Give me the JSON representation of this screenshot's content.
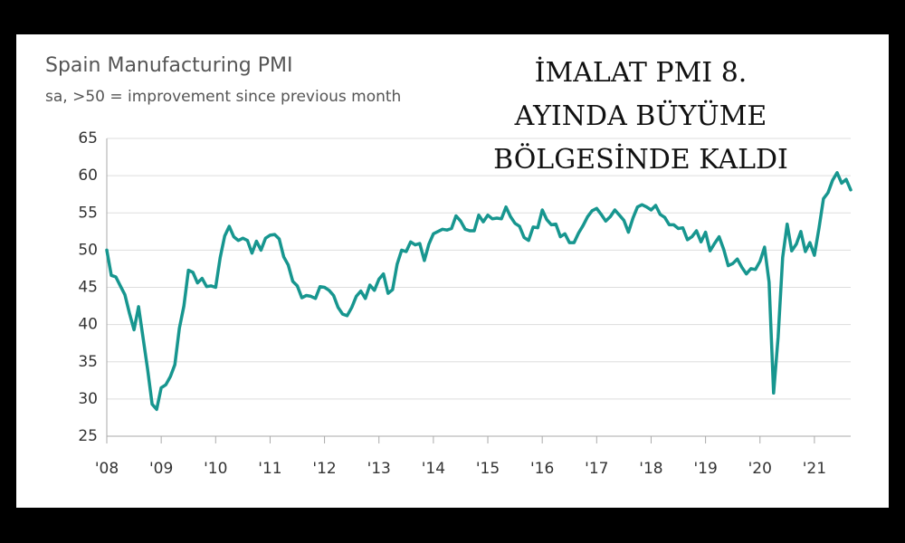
{
  "chart_data": {
    "type": "line",
    "title": "Spain Manufacturing PMI",
    "subtitle": "sa, >50 = improvement since previous month",
    "annotation": [
      "İMALAT PMI 8.",
      "AYINDA BÜYÜME",
      "BÖLGESİNDE KALDI"
    ],
    "categories": [
      "'08",
      null,
      null,
      null,
      null,
      null,
      null,
      null,
      null,
      null,
      null,
      null,
      "'09",
      null,
      null,
      null,
      null,
      null,
      null,
      null,
      null,
      null,
      null,
      null,
      "'10",
      null,
      null,
      null,
      null,
      null,
      null,
      null,
      null,
      null,
      null,
      null,
      "'11",
      null,
      null,
      null,
      null,
      null,
      null,
      null,
      null,
      null,
      null,
      null,
      "'12",
      null,
      null,
      null,
      null,
      null,
      null,
      null,
      null,
      null,
      null,
      null,
      "'13",
      null,
      null,
      null,
      null,
      null,
      null,
      null,
      null,
      null,
      null,
      null,
      "'14",
      null,
      null,
      null,
      null,
      null,
      null,
      null,
      null,
      null,
      null,
      null,
      "'15",
      null,
      null,
      null,
      null,
      null,
      null,
      null,
      null,
      null,
      null,
      null,
      "'16",
      null,
      null,
      null,
      null,
      null,
      null,
      null,
      null,
      null,
      null,
      null,
      "'17",
      null,
      null,
      null,
      null,
      null,
      null,
      null,
      null,
      null,
      null,
      null,
      "'18",
      null,
      null,
      null,
      null,
      null,
      null,
      null,
      null,
      null,
      null,
      null,
      "'19",
      null,
      null,
      null,
      null,
      null,
      null,
      null,
      null,
      null,
      null,
      null,
      "'20",
      null,
      null,
      null,
      null,
      null,
      null,
      null,
      null,
      null,
      null,
      null,
      "'21",
      null,
      null,
      null,
      null,
      null,
      null,
      null,
      null
    ],
    "values": [
      50.0,
      46.6,
      46.4,
      45.2,
      44.0,
      41.5,
      39.3,
      42.4,
      38.2,
      34.0,
      29.3,
      28.6,
      31.5,
      31.9,
      33.0,
      34.6,
      39.5,
      42.5,
      47.3,
      47.0,
      45.6,
      46.2,
      45.1,
      45.2,
      45.0,
      49.0,
      51.9,
      53.2,
      51.8,
      51.3,
      51.6,
      51.3,
      49.6,
      51.2,
      50.0,
      51.6,
      52.0,
      52.1,
      51.5,
      49.1,
      48.0,
      45.8,
      45.2,
      43.6,
      43.9,
      43.8,
      43.5,
      45.1,
      45.0,
      44.6,
      43.9,
      42.3,
      41.4,
      41.2,
      42.3,
      43.8,
      44.5,
      43.5,
      45.3,
      44.6,
      46.1,
      46.8,
      44.2,
      44.7,
      48.1,
      50.0,
      49.8,
      51.1,
      50.7,
      50.9,
      48.6,
      50.8,
      52.2,
      52.5,
      52.8,
      52.7,
      52.9,
      54.6,
      53.9,
      52.8,
      52.6,
      52.6,
      54.7,
      53.8,
      54.7,
      54.2,
      54.3,
      54.2,
      55.8,
      54.5,
      53.6,
      53.2,
      51.7,
      51.3,
      53.1,
      53.0,
      55.4,
      54.1,
      53.4,
      53.5,
      51.8,
      52.2,
      51.0,
      51.0,
      52.3,
      53.3,
      54.5,
      55.3,
      55.6,
      54.8,
      53.9,
      54.5,
      55.4,
      54.7,
      54.0,
      52.4,
      54.3,
      55.8,
      56.1,
      55.8,
      55.4,
      56.0,
      54.8,
      54.4,
      53.4,
      53.4,
      52.9,
      53.0,
      51.4,
      51.8,
      52.6,
      51.1,
      52.4,
      49.9,
      50.9,
      51.8,
      50.1,
      47.9,
      48.2,
      48.8,
      47.7,
      46.8,
      47.5,
      47.4,
      48.5,
      50.4,
      45.7,
      30.8,
      38.3,
      49.0,
      53.5,
      49.9,
      50.8,
      52.5,
      49.8,
      51.0,
      49.3,
      52.9,
      56.9,
      57.7,
      59.4,
      60.4,
      59.0,
      59.5,
      58.1
    ],
    "color": "#17968f",
    "ylim": [
      25,
      65
    ],
    "yticks": [
      25,
      30,
      35,
      40,
      45,
      50,
      55,
      60,
      65
    ],
    "grid": true
  }
}
